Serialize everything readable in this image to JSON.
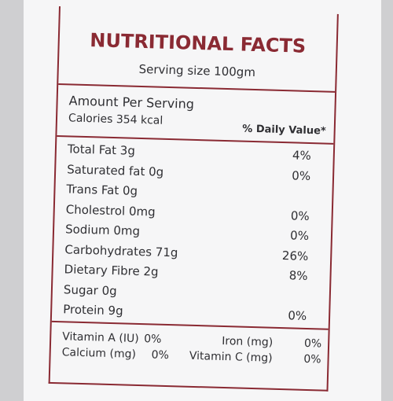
{
  "label": {
    "title": "NUTRITIONAL FACTS",
    "serving": "Serving size 100gm",
    "amount_header": "Amount Per Serving",
    "calories": "Calories 354 kcal",
    "dv_header": "% Daily Value*",
    "rows": [
      {
        "name": "Total Fat 3g",
        "dv": "4%"
      },
      {
        "name": "Saturated fat 0g",
        "dv": "0%"
      },
      {
        "name": "Trans Fat 0g"
      },
      {
        "name": "Cholestrol 0mg",
        "dv": "0%"
      },
      {
        "name": "Sodium 0mg",
        "dv": "0%"
      },
      {
        "name": "Carbohydrates 71g",
        "dv": "26%"
      },
      {
        "name": "Dietary Fibre 2g",
        "dv": "8%"
      },
      {
        "name": "Sugar 0g"
      },
      {
        "name": "Protein 9g",
        "dv": "0%"
      }
    ],
    "vitamins": [
      {
        "name": "Vitamin A (IU)",
        "dv": "0%"
      },
      {
        "name": "Calcium (mg)",
        "dv": "0%"
      },
      {
        "name": "Iron (mg)",
        "dv": "0%"
      },
      {
        "name": "Vitamin C (mg)",
        "dv": "0%"
      }
    ]
  }
}
